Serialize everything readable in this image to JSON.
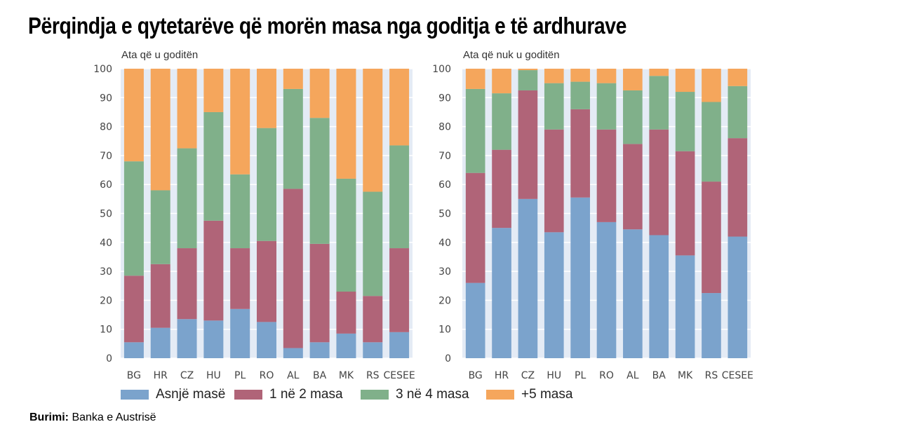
{
  "title": "Përqindja e qytetarëve që morën masa nga goditja e të ardhurave",
  "source": {
    "label": "Burimi:",
    "text": "Banka e Austrisë"
  },
  "chart_data": [
    {
      "type": "bar",
      "stacked": true,
      "title": "Ata që u goditën",
      "categories": [
        "BG",
        "HR",
        "CZ",
        "HU",
        "PL",
        "RO",
        "AL",
        "BA",
        "MK",
        "RS",
        "CESEE"
      ],
      "ylim": [
        0,
        100
      ],
      "yticks": [
        0,
        10,
        20,
        30,
        40,
        50,
        60,
        70,
        80,
        90,
        100
      ],
      "series": [
        {
          "name": "Asnjë masë",
          "color": "#7ba3cc",
          "values": [
            5.5,
            10.5,
            13.5,
            13,
            17,
            12.5,
            3.5,
            5.5,
            8.5,
            5.5,
            9
          ]
        },
        {
          "name": "1 në 2 masa",
          "color": "#b06478",
          "values": [
            23,
            22,
            24.5,
            34.5,
            21,
            28,
            55,
            34,
            14.5,
            16,
            29
          ]
        },
        {
          "name": "3 në 4 masa",
          "color": "#80b08a",
          "values": [
            39.5,
            25.5,
            34.5,
            37.5,
            25.5,
            39,
            34.5,
            43.5,
            39,
            36,
            35.5
          ]
        },
        {
          "name": "+5 masa",
          "color": "#f5a65c",
          "values": [
            32,
            42,
            27.5,
            15,
            36.5,
            20.5,
            7,
            17,
            38,
            42.5,
            26.5
          ]
        }
      ]
    },
    {
      "type": "bar",
      "stacked": true,
      "title": "Ata që nuk u goditën",
      "categories": [
        "BG",
        "HR",
        "CZ",
        "HU",
        "PL",
        "RO",
        "AL",
        "BA",
        "MK",
        "RS",
        "CESEE"
      ],
      "ylim": [
        0,
        100
      ],
      "yticks": [
        0,
        10,
        20,
        30,
        40,
        50,
        60,
        70,
        80,
        90,
        100
      ],
      "series": [
        {
          "name": "Asnjë masë",
          "color": "#7ba3cc",
          "values": [
            26,
            45,
            55,
            43.5,
            55.5,
            47,
            44.5,
            42.5,
            35.5,
            22.5,
            42
          ]
        },
        {
          "name": "1 në 2 masa",
          "color": "#b06478",
          "values": [
            38,
            27,
            37.5,
            35.5,
            30.5,
            32,
            29.5,
            36.5,
            36,
            38.5,
            34
          ]
        },
        {
          "name": "3 në 4 masa",
          "color": "#80b08a",
          "values": [
            29,
            19.5,
            7,
            16,
            9.5,
            16,
            18.5,
            18.5,
            20.5,
            27.5,
            18
          ]
        },
        {
          "name": "+5 masa",
          "color": "#f5a65c",
          "values": [
            7,
            8.5,
            0.5,
            5,
            4.5,
            5,
            7.5,
            2.5,
            8,
            11.5,
            6
          ]
        }
      ]
    }
  ]
}
